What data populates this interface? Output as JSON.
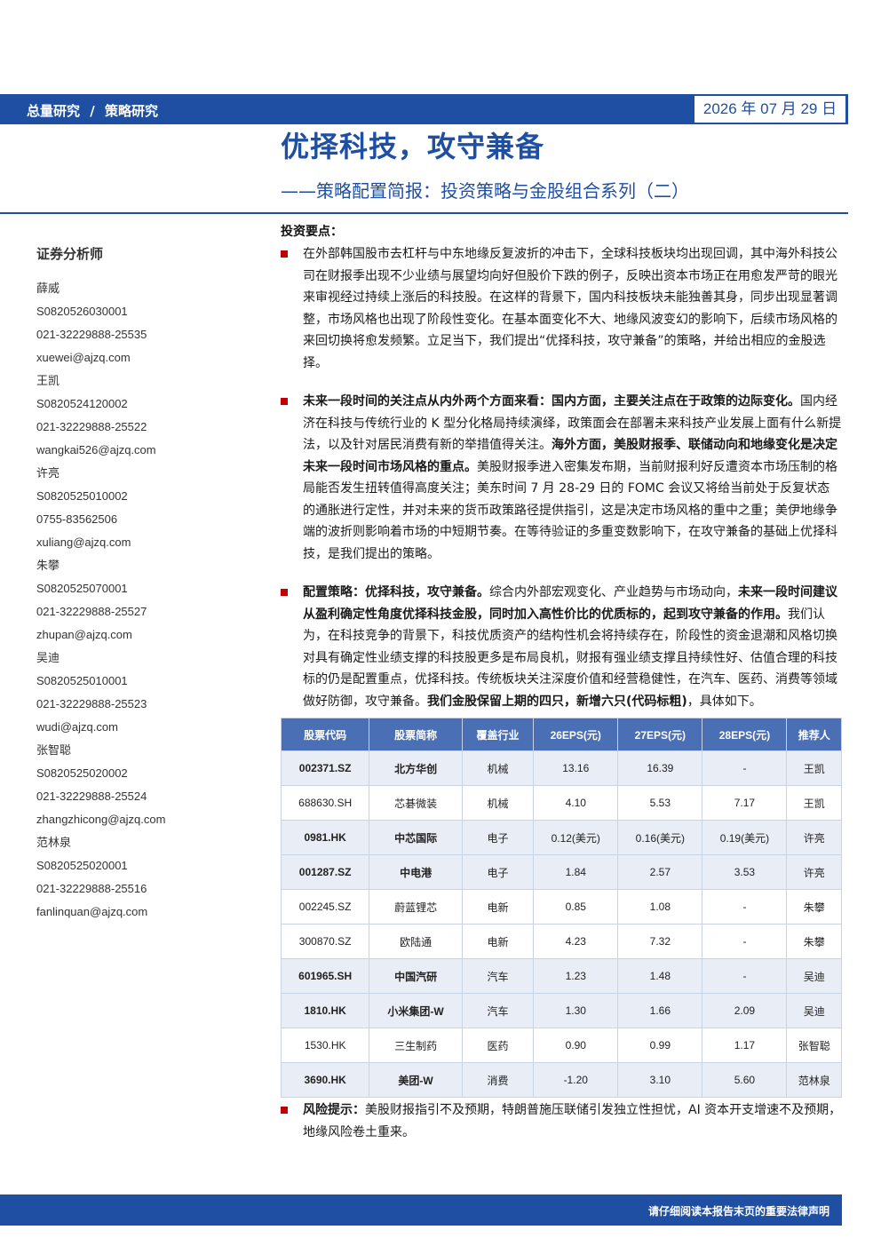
{
  "header": {
    "crumb1": "总量研究",
    "separator": "/",
    "crumb2": "策略研究",
    "date": "2026 年 07 月 29 日"
  },
  "title": "优择科技，攻守兼备",
  "subtitle": "——策略配置简报：投资策略与金股组合系列（二）",
  "sidebar": {
    "heading": "证券分析师",
    "lines": [
      "薛威",
      "S0820526030001",
      "021-32229888-25535",
      "xuewei@ajzq.com",
      "王凯",
      "S0820524120002",
      "021-32229888-25522",
      "wangkai526@ajzq.com",
      "许亮",
      "S0820525010002",
      "0755-83562506",
      "xuliang@ajzq.com",
      "朱攀",
      "S0820525070001",
      "021-32229888-25527",
      "zhupan@ajzq.com",
      "吴迪",
      "S0820525010001",
      "021-32229888-25523",
      "wudi@ajzq.com",
      "张智聪",
      "S0820525020002",
      "021-32229888-25524",
      "zhangzhicong@ajzq.com",
      "范林泉",
      "S0820525020001",
      "021-32229888-25516",
      "fanlinquan@ajzq.com"
    ]
  },
  "key_points_title": "投资要点：",
  "bullet1": "在外部韩国股市去杠杆与中东地缘反复波折的冲击下，全球科技板块均出现回调，其中海外科技公司在财报季出现不少业绩与展望均向好但股价下跌的例子，反映出资本市场正在用愈发严苛的眼光来审视经过持续上涨后的科技股。在这样的背景下，国内科技板块未能独善其身，同步出现显著调整，市场风格也出现了阶段性变化。在基本面变化不大、地缘风波变幻的影响下，后续市场风格的来回切换将愈发频繁。立足当下，我们提出“优择科技，攻守兼备”的策略，并给出相应的金股选择。",
  "bullet2": {
    "b1": "未来一段时间的关注点从内外两个方面来看：国内方面，主要关注点在于政策的边际变化。",
    "t1": "国内经济在科技与传统行业的 K 型分化格局持续演绎，政策面会在部署未来科技产业发展上面有什么新提法，以及针对居民消费有新的举措值得关注。",
    "b2": "海外方面，美股财报季、联储动向和地缘变化是决定未来一段时间市场风格的重点。",
    "t2": "美股财报季进入密集发布期，当前财报利好反遭资本市场压制的格局能否发生扭转值得高度关注；美东时间 7 月 28-29 日的 FOMC 会议又将给当前处于反复状态的通胀进行定性，并对未来的货币政策路径提供指引，这是决定市场风格的重中之重；美伊地缘争端的波折则影响着市场的中短期节奏。在等待验证的多重变数影响下，在攻守兼备的基础上优择科技，是我们提出的策略。"
  },
  "bullet3": {
    "b1": "配置策略：优择科技，攻守兼备。",
    "t1": "综合内外部宏观变化、产业趋势与市场动向，",
    "b2": "未来一段时间建议从盈利确定性角度优择科技金股，同时加入高性价比的优质标的，起到攻守兼备的作用。",
    "t2": "我们认为，在科技竞争的背景下，科技优质资产的结构性机会将持续存在，阶段性的资金退潮和风格切换对具有确定性业绩支撑的科技股更多是布局良机，财报有强业绩支撑且持续性好、估值合理的科技标的仍是配置重点，优择科技。传统板块关注深度价值和经营稳健性，在汽车、医药、消费等领域做好防御，攻守兼备。",
    "b3": "我们金股保留上期的四只，新增六只(代码标粗)",
    "t3": "，具体如下。"
  },
  "table": {
    "headers": [
      "股票代码",
      "股票简称",
      "覆盖行业",
      "26EPS(元)",
      "27EPS(元)",
      "28EPS(元)",
      "推荐人"
    ],
    "rows": [
      {
        "code": "002371.SZ",
        "name": "北方华创",
        "industry": "机械",
        "eps26": "13.16",
        "eps27": "16.39",
        "eps28": "-",
        "analyst": "王凯",
        "bold": true
      },
      {
        "code": "688630.SH",
        "name": "芯碁微装",
        "industry": "机械",
        "eps26": "4.10",
        "eps27": "5.53",
        "eps28": "7.17",
        "analyst": "王凯",
        "bold": false
      },
      {
        "code": "0981.HK",
        "name": "中芯国际",
        "industry": "电子",
        "eps26": "0.12(美元)",
        "eps27": "0.16(美元)",
        "eps28": "0.19(美元)",
        "analyst": "许亮",
        "bold": true
      },
      {
        "code": "001287.SZ",
        "name": "中电港",
        "industry": "电子",
        "eps26": "1.84",
        "eps27": "2.57",
        "eps28": "3.53",
        "analyst": "许亮",
        "bold": true
      },
      {
        "code": "002245.SZ",
        "name": "蔚蓝锂芯",
        "industry": "电新",
        "eps26": "0.85",
        "eps27": "1.08",
        "eps28": "-",
        "analyst": "朱攀",
        "bold": false
      },
      {
        "code": "300870.SZ",
        "name": "欧陆通",
        "industry": "电新",
        "eps26": "4.23",
        "eps27": "7.32",
        "eps28": "-",
        "analyst": "朱攀",
        "bold": false
      },
      {
        "code": "601965.SH",
        "name": "中国汽研",
        "industry": "汽车",
        "eps26": "1.23",
        "eps27": "1.48",
        "eps28": "-",
        "analyst": "吴迪",
        "bold": true
      },
      {
        "code": "1810.HK",
        "name": "小米集团-W",
        "industry": "汽车",
        "eps26": "1.30",
        "eps27": "1.66",
        "eps28": "2.09",
        "analyst": "吴迪",
        "bold": true
      },
      {
        "code": "1530.HK",
        "name": "三生制药",
        "industry": "医药",
        "eps26": "0.90",
        "eps27": "0.99",
        "eps28": "1.17",
        "analyst": "张智聪",
        "bold": false
      },
      {
        "code": "3690.HK",
        "name": "美团-W",
        "industry": "消费",
        "eps26": "-1.20",
        "eps27": "3.10",
        "eps28": "5.60",
        "analyst": "范林泉",
        "bold": true
      }
    ]
  },
  "risk": {
    "label": "风险提示：",
    "text": "美股财报指引不及预期，特朗普施压联储引发独立性担忧，AI 资本开支增速不及预期，地缘风险卷土重来。"
  },
  "footer_note": "请仔细阅读本报告末页的重要法律声明"
}
